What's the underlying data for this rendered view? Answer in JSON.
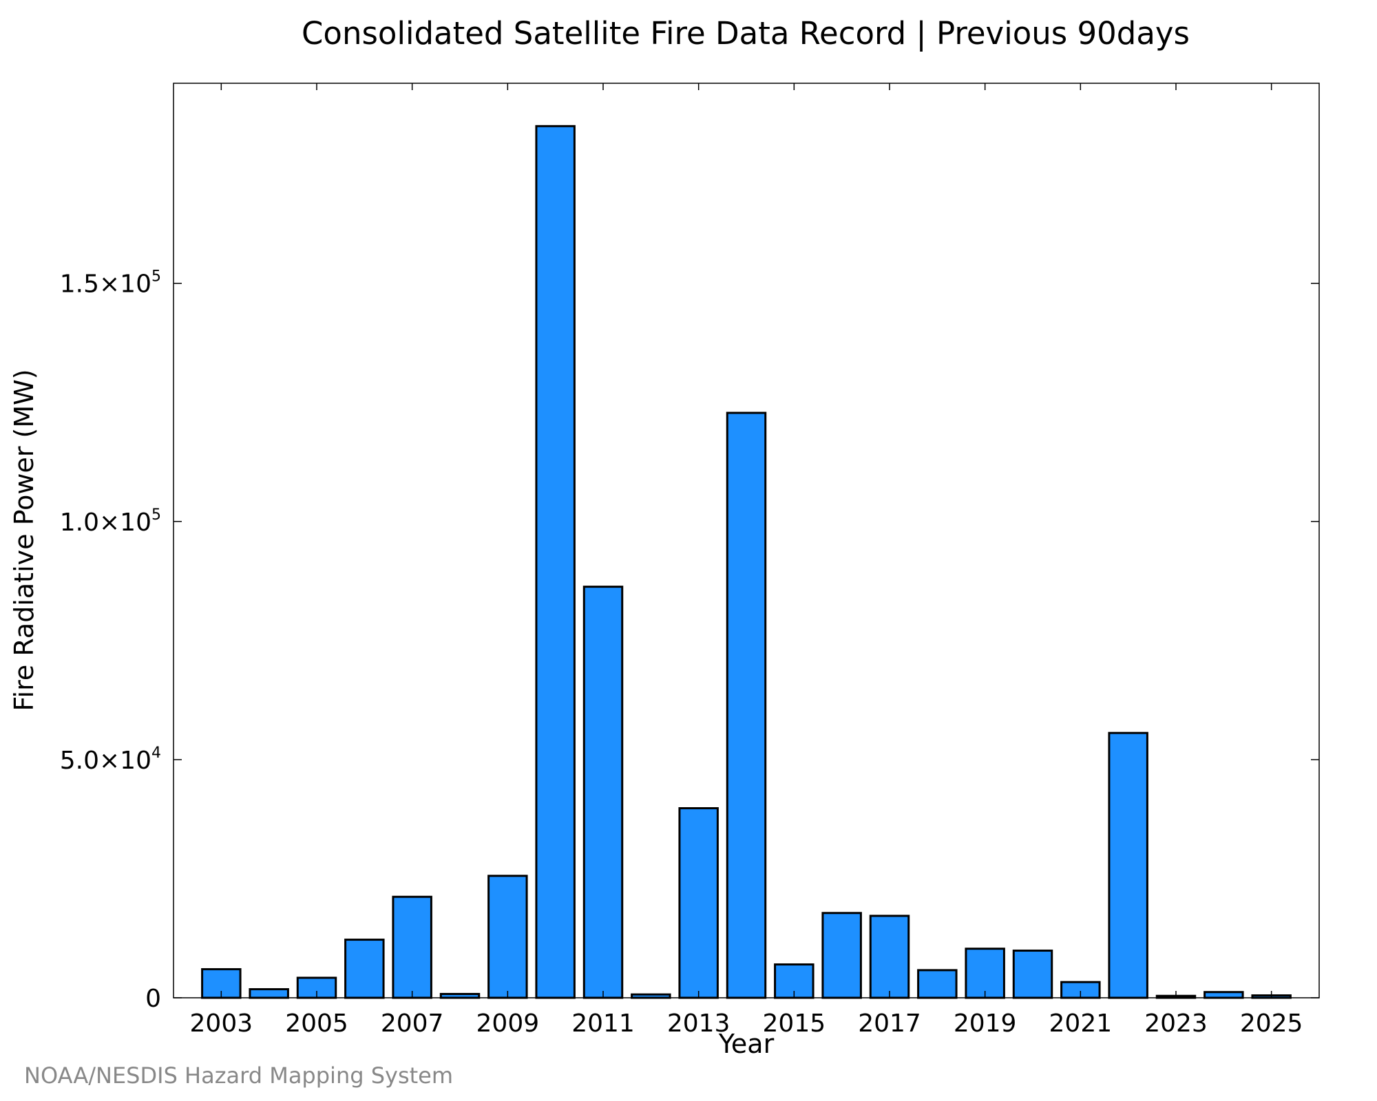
{
  "chart_data": {
    "type": "bar",
    "title": "Consolidated Satellite Fire Data Record | Previous 90days",
    "xlabel": "Year",
    "ylabel": "Fire Radiative Power (MW)",
    "x": [
      2003,
      2004,
      2005,
      2006,
      2007,
      2008,
      2009,
      2010,
      2011,
      2012,
      2013,
      2014,
      2015,
      2016,
      2017,
      2018,
      2019,
      2020,
      2021,
      2022,
      2023,
      2024,
      2025
    ],
    "values": [
      6000,
      1800,
      4200,
      12200,
      21200,
      800,
      25600,
      183000,
      86300,
      700,
      39800,
      122800,
      7000,
      17800,
      17200,
      5800,
      10300,
      9900,
      3300,
      55600,
      400,
      1200,
      500
    ],
    "xlim": [
      2002.0,
      2026.0
    ],
    "ylim": [
      0,
      192000
    ],
    "x_ticks": [
      2003,
      2005,
      2007,
      2009,
      2011,
      2013,
      2015,
      2017,
      2019,
      2021,
      2023,
      2025
    ],
    "x_tick_labels": [
      "2003",
      "2005",
      "2007",
      "2009",
      "2011",
      "2013",
      "2015",
      "2017",
      "2019",
      "2021",
      "2023",
      "2025"
    ],
    "y_ticks": [
      0,
      50000,
      100000,
      150000
    ],
    "y_tick_labels": [
      {
        "mantissa": "0",
        "exponent": ""
      },
      {
        "mantissa": "5.0×10",
        "exponent": "4"
      },
      {
        "mantissa": "1.0×10",
        "exponent": "5"
      },
      {
        "mantissa": "1.5×10",
        "exponent": "5"
      }
    ],
    "bar_color": "#1E90FF",
    "grid": false,
    "legend": "none"
  },
  "credit": "NOAA/NESDIS Hazard Mapping System"
}
